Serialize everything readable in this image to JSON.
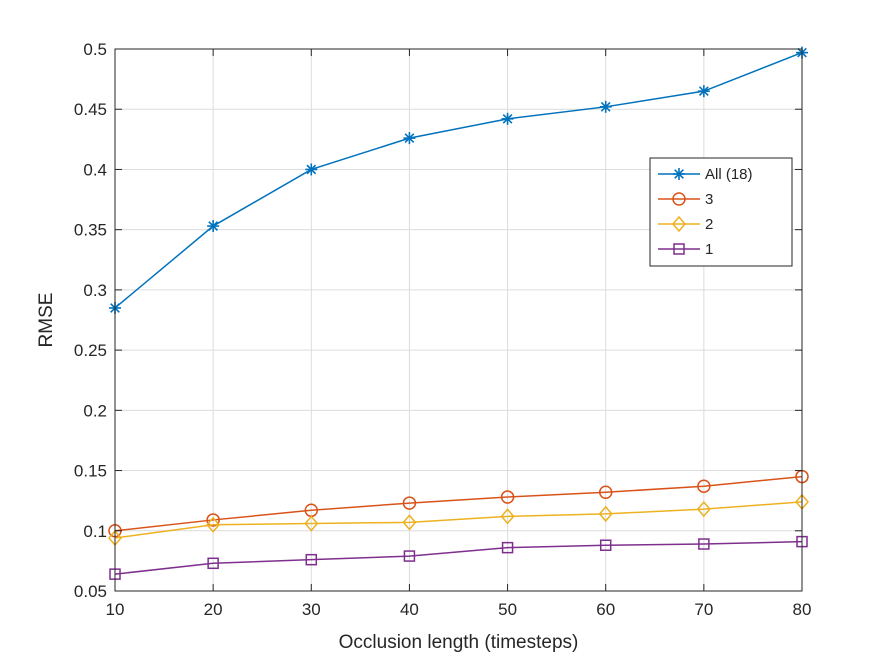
{
  "chart_data": {
    "type": "line",
    "title": "",
    "xlabel": "Occlusion length (timesteps)",
    "ylabel": "RMSE",
    "x": [
      10,
      20,
      30,
      40,
      50,
      60,
      70,
      80
    ],
    "xlim": [
      10,
      80
    ],
    "ylim": [
      0.05,
      0.5
    ],
    "xticks": [
      10,
      20,
      30,
      40,
      50,
      60,
      70,
      80
    ],
    "xtick_labels": [
      "10",
      "20",
      "30",
      "40",
      "50",
      "60",
      "70",
      "80"
    ],
    "yticks": [
      0.05,
      0.1,
      0.15,
      0.2,
      0.25,
      0.3,
      0.35,
      0.4,
      0.45,
      0.5
    ],
    "ytick_labels": [
      "0.05",
      "0.1",
      "0.15",
      "0.2",
      "0.25",
      "0.3",
      "0.35",
      "0.4",
      "0.45",
      "0.5"
    ],
    "grid": true,
    "legend_position": "right",
    "series": [
      {
        "name": "All (18)",
        "marker": "asterisk",
        "color": "#0072BD",
        "values": [
          0.285,
          0.353,
          0.4,
          0.426,
          0.442,
          0.452,
          0.465,
          0.497
        ]
      },
      {
        "name": "3",
        "marker": "circle",
        "color": "#D95319",
        "values": [
          0.1,
          0.109,
          0.117,
          0.123,
          0.128,
          0.132,
          0.137,
          0.145
        ]
      },
      {
        "name": "2",
        "marker": "diamond",
        "color": "#EDB120",
        "values": [
          0.094,
          0.105,
          0.106,
          0.107,
          0.112,
          0.114,
          0.118,
          0.124
        ]
      },
      {
        "name": "1",
        "marker": "square",
        "color": "#7E2F8E",
        "values": [
          0.064,
          0.073,
          0.076,
          0.079,
          0.086,
          0.088,
          0.089,
          0.091
        ]
      }
    ]
  }
}
